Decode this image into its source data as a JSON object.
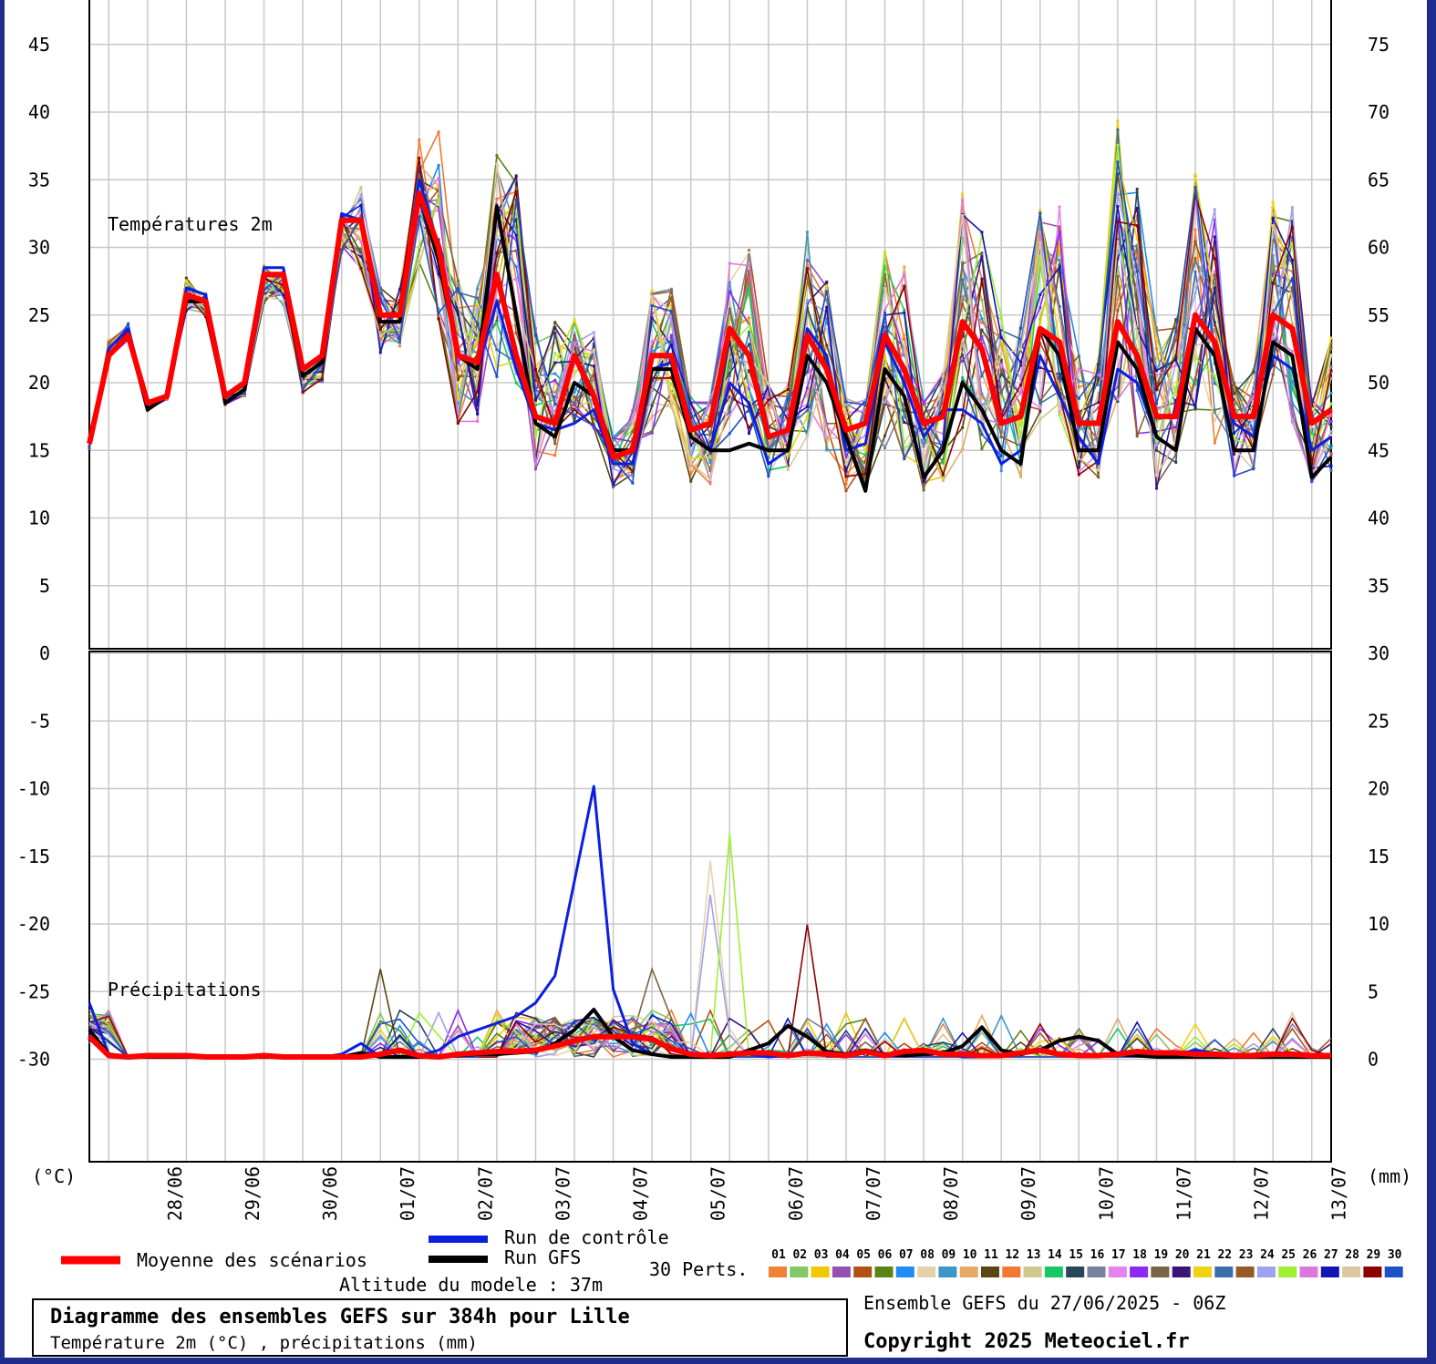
{
  "colors": {
    "mean": "#ff0000",
    "control": "#0a1fe0",
    "gfs": "#000000",
    "grid": "#c8c8c8",
    "frame": "#1e2d8c"
  },
  "labels": {
    "temp_panel": "Températures 2m",
    "precip_panel": "Précipitations",
    "unit_left": "(°C)",
    "unit_right": "(mm)",
    "legend_mean": "Moyenne des scénarios",
    "legend_control": "Run de contrôle",
    "legend_gfs": "Run GFS",
    "legend_perts": "30 Perts.",
    "altitude": "Altitude du modele : 37m",
    "title": "Diagramme des ensembles GEFS sur 384h pour Lille",
    "subtitle": "Température 2m (°C) , précipitations (mm)",
    "ensemble": "Ensemble GEFS du 27/06/2025 - 06Z",
    "copyright": "Copyright 2025 Meteociel.fr"
  },
  "perturbations": [
    {
      "id": "01",
      "color": "#f08232"
    },
    {
      "id": "02",
      "color": "#82c864"
    },
    {
      "id": "03",
      "color": "#f0c800"
    },
    {
      "id": "04",
      "color": "#9650b4"
    },
    {
      "id": "05",
      "color": "#b45014"
    },
    {
      "id": "06",
      "color": "#5a8214"
    },
    {
      "id": "07",
      "color": "#1e8cf0"
    },
    {
      "id": "08",
      "color": "#e6d2aa"
    },
    {
      "id": "09",
      "color": "#3c96c8"
    },
    {
      "id": "10",
      "color": "#e6aa64"
    },
    {
      "id": "11",
      "color": "#5a4614"
    },
    {
      "id": "12",
      "color": "#f07832"
    },
    {
      "id": "13",
      "color": "#d2c88c"
    },
    {
      "id": "14",
      "color": "#14c864"
    },
    {
      "id": "15",
      "color": "#28465a"
    },
    {
      "id": "16",
      "color": "#7882a0"
    },
    {
      "id": "17",
      "color": "#e682f0"
    },
    {
      "id": "18",
      "color": "#8c28f0"
    },
    {
      "id": "19",
      "color": "#786446"
    },
    {
      "id": "20",
      "color": "#3c1478"
    },
    {
      "id": "21",
      "color": "#f0d214"
    },
    {
      "id": "22",
      "color": "#3c6eaa"
    },
    {
      "id": "23",
      "color": "#965a28"
    },
    {
      "id": "24",
      "color": "#a0a0f0"
    },
    {
      "id": "25",
      "color": "#a0f032"
    },
    {
      "id": "26",
      "color": "#dc78dc"
    },
    {
      "id": "27",
      "color": "#1414b4"
    },
    {
      "id": "28",
      "color": "#dcc8a0"
    },
    {
      "id": "29",
      "color": "#8c0000"
    },
    {
      "id": "30",
      "color": "#1e50c8"
    }
  ],
  "chart_data": [
    {
      "type": "line",
      "title": "Températures 2m",
      "ylabel": "(°C)",
      "ylim": [
        -40,
        45
      ],
      "yticks": [
        45,
        40,
        35,
        30,
        25,
        20,
        15,
        10,
        5,
        0,
        -5,
        -10,
        -15,
        -20,
        -25,
        -30
      ],
      "x_unit": "hours since 27/06 06Z",
      "x_step_hours": 6,
      "xlim": [
        0,
        384
      ],
      "x_tick_labels": [
        "28/06",
        "29/06",
        "30/06",
        "01/07",
        "02/07",
        "03/07",
        "04/07",
        "05/07",
        "06/07",
        "07/07",
        "08/07",
        "09/07",
        "10/07",
        "11/07",
        "12/07",
        "13/07"
      ],
      "x_tick_hours": [
        18,
        42,
        66,
        90,
        114,
        138,
        162,
        186,
        210,
        234,
        258,
        282,
        306,
        330,
        354,
        378
      ],
      "grid": true,
      "series": [
        {
          "name": "Moyenne des scénarios",
          "values": [
            15.5,
            22,
            23.5,
            18.5,
            19,
            26.5,
            26,
            19,
            20,
            28,
            28,
            21,
            22,
            32,
            32,
            25,
            25,
            34,
            30,
            22,
            21.5,
            28,
            22,
            17.5,
            17,
            22,
            19,
            14.5,
            15,
            22,
            22,
            16.5,
            17,
            24,
            22,
            16,
            16.5,
            23.5,
            21,
            16.5,
            17,
            23.5,
            21,
            17,
            17.5,
            24.5,
            22.5,
            17,
            17.5,
            24,
            23,
            17,
            17,
            24.5,
            22,
            17.5,
            17.5,
            25,
            23,
            17.5,
            17.5,
            25,
            24,
            17,
            18
          ]
        },
        {
          "name": "Run de contrôle",
          "values": [
            15.5,
            22.5,
            24,
            18.5,
            19,
            27,
            26.5,
            19,
            20,
            28.5,
            28.5,
            21,
            22,
            32.5,
            32,
            25,
            25,
            35,
            30,
            22,
            21,
            26,
            21,
            17,
            16.5,
            17,
            18,
            14,
            14,
            21,
            21.5,
            16,
            15,
            20,
            18.5,
            14,
            15,
            24,
            22,
            15,
            15.5,
            23,
            20,
            16,
            18,
            18,
            17,
            14,
            15,
            22,
            19,
            16,
            14,
            21,
            20,
            16,
            15,
            25,
            23,
            17,
            16,
            22,
            21,
            15,
            16
          ]
        },
        {
          "name": "Run GFS",
          "values": [
            15.5,
            22,
            23.5,
            18,
            19,
            26,
            26,
            18.5,
            19.5,
            28,
            28,
            20.5,
            21.5,
            32,
            32,
            24.5,
            24.5,
            34,
            29,
            22,
            21,
            33,
            25,
            17,
            16,
            20,
            19,
            15,
            15,
            21,
            21,
            16,
            15,
            15,
            15.5,
            15,
            15,
            22,
            20,
            16,
            12,
            21,
            19,
            13,
            15,
            20,
            18,
            15,
            14,
            24,
            22,
            15,
            15,
            23,
            21,
            16,
            15,
            24,
            22,
            15,
            15,
            23,
            22,
            13,
            14.5
          ]
        }
      ],
      "ensemble_members": 30,
      "ensemble_envelope": {
        "min": [
          15,
          21,
          22.5,
          17.5,
          18.5,
          24,
          24,
          18,
          18.5,
          24.5,
          24.5,
          18,
          19,
          27.5,
          28,
          22,
          22.5,
          28.5,
          24,
          17,
          17,
          20,
          19,
          13.5,
          13.5,
          17,
          16.5,
          12,
          12.5,
          16,
          18,
          12.5,
          12.5,
          16,
          16,
          13,
          13.5,
          16,
          15,
          11,
          12,
          15,
          14,
          12,
          12.5,
          15,
          14,
          13,
          13,
          17,
          17,
          13,
          13,
          18,
          15.5,
          11.5,
          12,
          16,
          15,
          13,
          13.5,
          19,
          17,
          12.5,
          13
        ],
        "max": [
          15.5,
          24,
          25,
          19,
          19.5,
          29,
          27.5,
          19.5,
          20.5,
          30,
          29.5,
          22,
          23,
          34,
          35,
          27,
          27,
          38,
          39,
          28,
          28,
          37,
          35.5,
          24,
          25,
          25,
          24,
          16,
          18,
          27,
          27,
          19,
          19,
          30,
          30,
          20,
          20,
          33,
          28,
          19,
          19,
          30,
          29,
          19,
          21,
          34,
          31.5,
          25,
          25,
          33,
          33,
          22,
          22,
          39.5,
          34.5,
          25,
          25,
          36.5,
          33.5,
          21,
          21,
          33.5,
          33,
          19,
          23.5
        ]
      }
    },
    {
      "type": "line",
      "title": "Précipitations",
      "ylabel": "(mm)",
      "right_axis_ticks": [
        75,
        70,
        65,
        60,
        55,
        50,
        45,
        40,
        35,
        30,
        25,
        20,
        15,
        10,
        5,
        0
      ],
      "panel_ylim": [
        0,
        20
      ],
      "x_unit": "hours since 27/06 06Z",
      "x_step_hours": 6,
      "grid": true,
      "series": [
        {
          "name": "Moyenne des scénarios",
          "values": [
            1.5,
            0.1,
            0,
            0.1,
            0.1,
            0.1,
            0,
            0,
            0,
            0.1,
            0,
            0,
            0,
            0,
            0,
            0.2,
            0.5,
            0.1,
            0,
            0.2,
            0.3,
            0.4,
            0.4,
            0.5,
            0.8,
            1.2,
            1.5,
            1.5,
            1.5,
            1.3,
            0.6,
            0.2,
            0.1,
            0.2,
            0.3,
            0.3,
            0.1,
            0.3,
            0.2,
            0.1,
            0.4,
            0.1,
            0.4,
            0.5,
            0.2,
            0.2,
            0.1,
            0.1,
            0.3,
            0.5,
            0.2,
            0.1,
            0.1,
            0.2,
            0.4,
            0.3,
            0.3,
            0.2,
            0.2,
            0.1,
            0.1,
            0.2,
            0.2,
            0.1,
            0.1
          ]
        },
        {
          "name": "Run de contrôle",
          "values": [
            4,
            0.2,
            0,
            0,
            0,
            0,
            0,
            0,
            0,
            0,
            0,
            0,
            0,
            0.2,
            1,
            0,
            0,
            0.1,
            0.5,
            1.5,
            2,
            2.5,
            3,
            4,
            6,
            13,
            20,
            5,
            1,
            0.2,
            0,
            0,
            0.1,
            0.3,
            0.2,
            0,
            0.1,
            0.2,
            0.1,
            0,
            0.3,
            0.2,
            0.1,
            0.2,
            0.3,
            0,
            0,
            0.1,
            0.3,
            0.4,
            0.2,
            0,
            0.1,
            0.3,
            0.5,
            0.3,
            0.2,
            0.5,
            0.3,
            0.2,
            0.2,
            0.3,
            0.2,
            0,
            0
          ]
        },
        {
          "name": "Run GFS",
          "values": [
            2,
            0.2,
            0,
            0,
            0,
            0,
            0,
            0,
            0,
            0,
            0,
            0,
            0,
            0,
            0.3,
            0,
            0,
            0,
            0,
            0.1,
            0.2,
            0.2,
            0.3,
            0.4,
            1,
            2,
            3.5,
            1.5,
            0.5,
            0.2,
            0,
            0,
            0,
            0,
            0.5,
            1,
            2.3,
            1.5,
            0.4,
            0.2,
            0.5,
            0.2,
            0.1,
            0.2,
            0.3,
            0.8,
            2.2,
            0.5,
            0.2,
            0.5,
            1.2,
            1.5,
            1.2,
            0.2,
            0.1,
            0,
            0,
            0,
            0,
            0,
            0,
            0,
            0,
            0,
            0
          ]
        }
      ],
      "notable_member_peaks_mm": [
        {
          "member": "25",
          "hour": 198,
          "value": 16.5
        },
        {
          "member": "08",
          "hour": 192,
          "value": 14.5
        },
        {
          "member": "24",
          "hour": 192,
          "value": 12
        },
        {
          "member": "29",
          "hour": 222,
          "value": 9.8
        },
        {
          "member": "19",
          "hour": 174,
          "value": 6.5
        },
        {
          "member": "11",
          "hour": 90,
          "value": 6.5
        }
      ]
    }
  ]
}
